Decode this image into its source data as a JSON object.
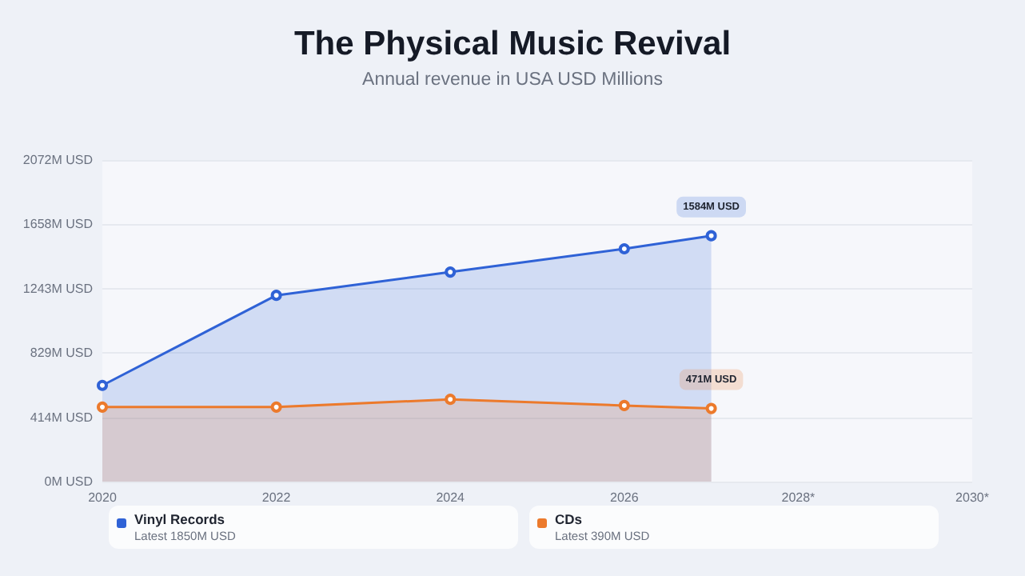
{
  "chart_data": {
    "type": "area",
    "title": "The Physical Music Revival",
    "subtitle": "Annual revenue in USA USD Millions",
    "x": [
      2020,
      2022,
      2024,
      2026,
      2027
    ],
    "series": [
      {
        "name": "Vinyl Records",
        "color": "#2f62d6",
        "values": [
          620,
          1200,
          1350,
          1500,
          1584
        ],
        "value_labels": [
          null,
          null,
          null,
          null,
          "1584M USD"
        ]
      },
      {
        "name": "CDs",
        "color": "#ec7a2c",
        "values": [
          480,
          480,
          530,
          490,
          471
        ],
        "value_labels": [
          null,
          null,
          null,
          null,
          "471M USD"
        ]
      }
    ],
    "annotations": [
      "Latest 1850M USD",
      "Latest 390M USD"
    ],
    "xlim": [
      2020,
      2030
    ],
    "xticks": [
      2020,
      2022,
      2024,
      2026,
      {
        "value": 2028,
        "label": "2028*"
      },
      {
        "value": 2030,
        "label": "2030*"
      }
    ],
    "ylim": [
      0,
      2072
    ],
    "yticks": [
      {
        "value": 0,
        "label": "0M USD"
      },
      {
        "value": 414,
        "label": "414M USD"
      },
      {
        "value": 829,
        "label": "829M USD"
      },
      {
        "value": 1243,
        "label": "1243M USD"
      },
      {
        "value": 1658,
        "label": "1658M USD"
      },
      {
        "value": 2072,
        "label": "2072M USD"
      }
    ],
    "grid": "y",
    "legend": "bottom",
    "marker": "circle",
    "line_style": "solid"
  }
}
